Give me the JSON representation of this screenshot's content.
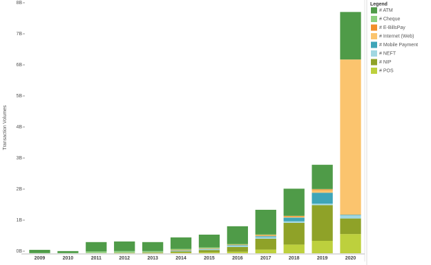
{
  "chart_data": {
    "type": "stacked_bar",
    "y_label": "Transaction Volumes",
    "legend_title": "Legend",
    "legend": "right",
    "grid": false,
    "categories": [
      "2009",
      "2010",
      "2011",
      "2012",
      "2013",
      "2014",
      "2015",
      "2016",
      "2017",
      "2018",
      "2019",
      "2020"
    ],
    "ylim": [
      0,
      8000000000
    ],
    "yticks": [
      {
        "value": 0,
        "label": "0B"
      },
      {
        "value": 1000000000,
        "label": "1B"
      },
      {
        "value": 2000000000,
        "label": "2B"
      },
      {
        "value": 3000000000,
        "label": "3B"
      },
      {
        "value": 4000000000,
        "label": "4B"
      },
      {
        "value": 5000000000,
        "label": "5B"
      },
      {
        "value": 6000000000,
        "label": "6B"
      },
      {
        "value": 7000000000,
        "label": "7B"
      },
      {
        "value": 8000000000,
        "label": "8B"
      }
    ],
    "series": [
      {
        "name": "# ATM",
        "color": "#4f9b48",
        "values": [
          100000000,
          60000000,
          300000000,
          310000000,
          290000000,
          370000000,
          410000000,
          570000000,
          790000000,
          870000000,
          780000000,
          1530000000
        ]
      },
      {
        "name": "# Cheque",
        "color": "#8ccf7e",
        "values": [
          10000000,
          10000000,
          40000000,
          40000000,
          30000000,
          30000000,
          30000000,
          20000000,
          20000000,
          10000000,
          10000000,
          0
        ]
      },
      {
        "name": "# E-BillsPay",
        "color": "#f28e2b",
        "values": [
          0,
          0,
          0,
          0,
          0,
          10000000,
          10000000,
          10000000,
          20000000,
          20000000,
          30000000,
          0
        ]
      },
      {
        "name": "# Internet (Web)",
        "color": "#fbc46e",
        "values": [
          0,
          0,
          0,
          0,
          0,
          10000000,
          10000000,
          10000000,
          20000000,
          30000000,
          80000000,
          5000000000
        ]
      },
      {
        "name": "# Mobile Payment",
        "color": "#3ea5b8",
        "values": [
          0,
          0,
          0,
          0,
          0,
          10000000,
          10000000,
          20000000,
          30000000,
          120000000,
          350000000,
          20000000
        ]
      },
      {
        "name": "# NEFT",
        "color": "#a1d7e1",
        "values": [
          0,
          0,
          10000000,
          10000000,
          10000000,
          20000000,
          30000000,
          40000000,
          50000000,
          50000000,
          50000000,
          100000000
        ]
      },
      {
        "name": "# NIP",
        "color": "#8fa228",
        "values": [
          0,
          0,
          0,
          10000000,
          20000000,
          40000000,
          70000000,
          150000000,
          350000000,
          700000000,
          1150000000,
          500000000
        ]
      },
      {
        "name": "# POS",
        "color": "#bdd03d",
        "values": [
          0,
          0,
          10000000,
          10000000,
          10000000,
          20000000,
          30000000,
          50000000,
          120000000,
          280000000,
          400000000,
          620000000
        ]
      }
    ]
  }
}
